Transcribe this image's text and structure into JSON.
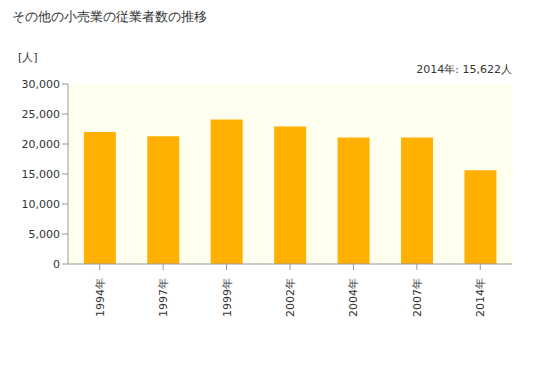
{
  "chart_data": {
    "type": "bar",
    "title": "その他の小売業の従業者数の推移",
    "subtitle": "[人]",
    "annotation": "2014年: 15,622人",
    "categories": [
      "1994年",
      "1997年",
      "1999年",
      "2002年",
      "2004年",
      "2007年",
      "2014年"
    ],
    "values": [
      22000,
      21300,
      24100,
      22900,
      21100,
      21100,
      15622
    ],
    "color": "#ffb000",
    "ylim": [
      0,
      30000
    ],
    "yticks": [
      0,
      {
        "value": 5000,
        "label": "5,000"
      },
      {
        "value": 10000,
        "label": "10,000"
      },
      {
        "value": 15000,
        "label": "15,000"
      },
      {
        "value": 20000,
        "label": "20,000"
      },
      {
        "value": 25000,
        "label": "25,000"
      },
      {
        "value": 30000,
        "label": "30,000"
      }
    ],
    "grid": false
  }
}
